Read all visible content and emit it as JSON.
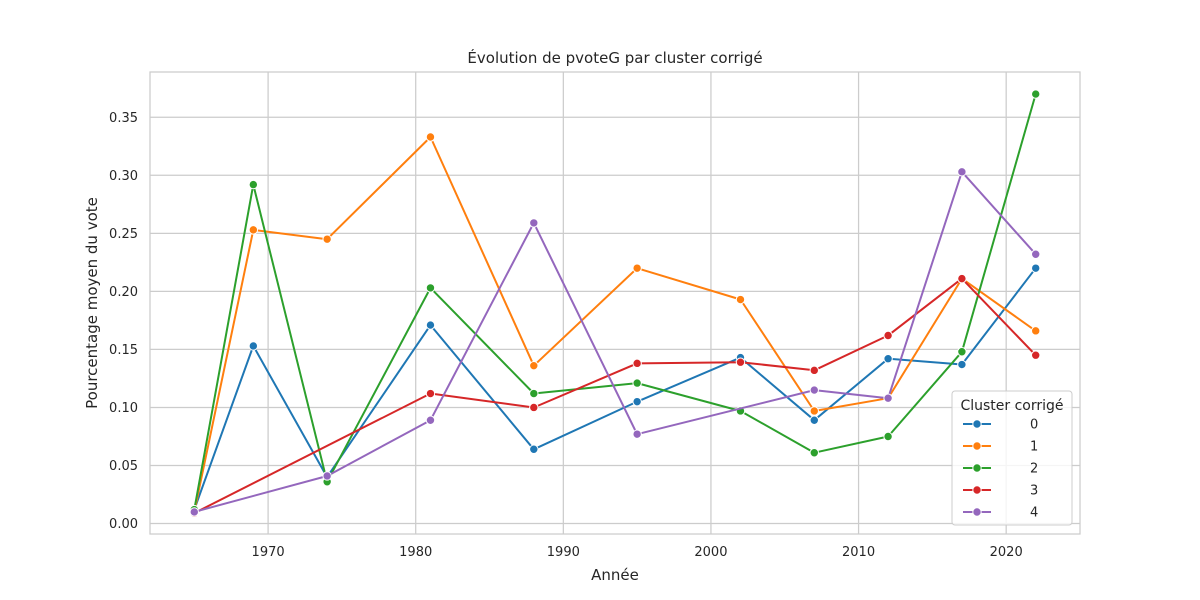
{
  "chart_data": {
    "type": "line",
    "title": "Évolution de pvoteG par cluster corrigé",
    "xlabel": "Année",
    "ylabel": "Pourcentage moyen du vote",
    "xlim": [
      1962,
      2025
    ],
    "ylim": [
      -0.009,
      0.389
    ],
    "xticks": [
      1970,
      1980,
      1990,
      2000,
      2010,
      2020
    ],
    "yticks": [
      0.0,
      0.05,
      0.1,
      0.15,
      0.2,
      0.25,
      0.3,
      0.35
    ],
    "grid": true,
    "legend": {
      "title": "Cluster corrigé",
      "position": "lower-right"
    },
    "series": [
      {
        "name": "0",
        "color": "#1f77b4",
        "x": [
          1965,
          1969,
          1974,
          1981,
          1988,
          1995,
          2002,
          2007,
          2012,
          2017,
          2022
        ],
        "y": [
          0.012,
          0.153,
          0.04,
          0.171,
          0.064,
          0.105,
          0.143,
          0.089,
          0.142,
          0.137,
          0.22
        ]
      },
      {
        "name": "1",
        "color": "#ff7f0e",
        "x": [
          1965,
          1969,
          1974,
          1981,
          1988,
          1995,
          2002,
          2007,
          2012,
          2017,
          2022
        ],
        "y": [
          0.01,
          0.253,
          0.245,
          0.333,
          0.136,
          0.22,
          0.193,
          0.097,
          0.108,
          0.211,
          0.166
        ]
      },
      {
        "name": "2",
        "color": "#2ca02c",
        "x": [
          1965,
          1969,
          1974,
          1981,
          1988,
          1995,
          2002,
          2007,
          2012,
          2017,
          2022
        ],
        "y": [
          0.012,
          0.292,
          0.036,
          0.203,
          0.112,
          0.121,
          0.097,
          0.061,
          0.075,
          0.148,
          0.37
        ]
      },
      {
        "name": "3",
        "color": "#d62728",
        "x": [
          1965,
          1981,
          1988,
          1995,
          2002,
          2007,
          2012,
          2017,
          2022
        ],
        "y": [
          0.009,
          0.112,
          0.1,
          0.138,
          0.139,
          0.132,
          0.162,
          0.211,
          0.145
        ]
      },
      {
        "name": "4",
        "color": "#9467bd",
        "x": [
          1965,
          1974,
          1981,
          1988,
          1995,
          2007,
          2012,
          2017,
          2022
        ],
        "y": [
          0.01,
          0.041,
          0.089,
          0.259,
          0.077,
          0.115,
          0.108,
          0.303,
          0.232
        ]
      }
    ]
  }
}
